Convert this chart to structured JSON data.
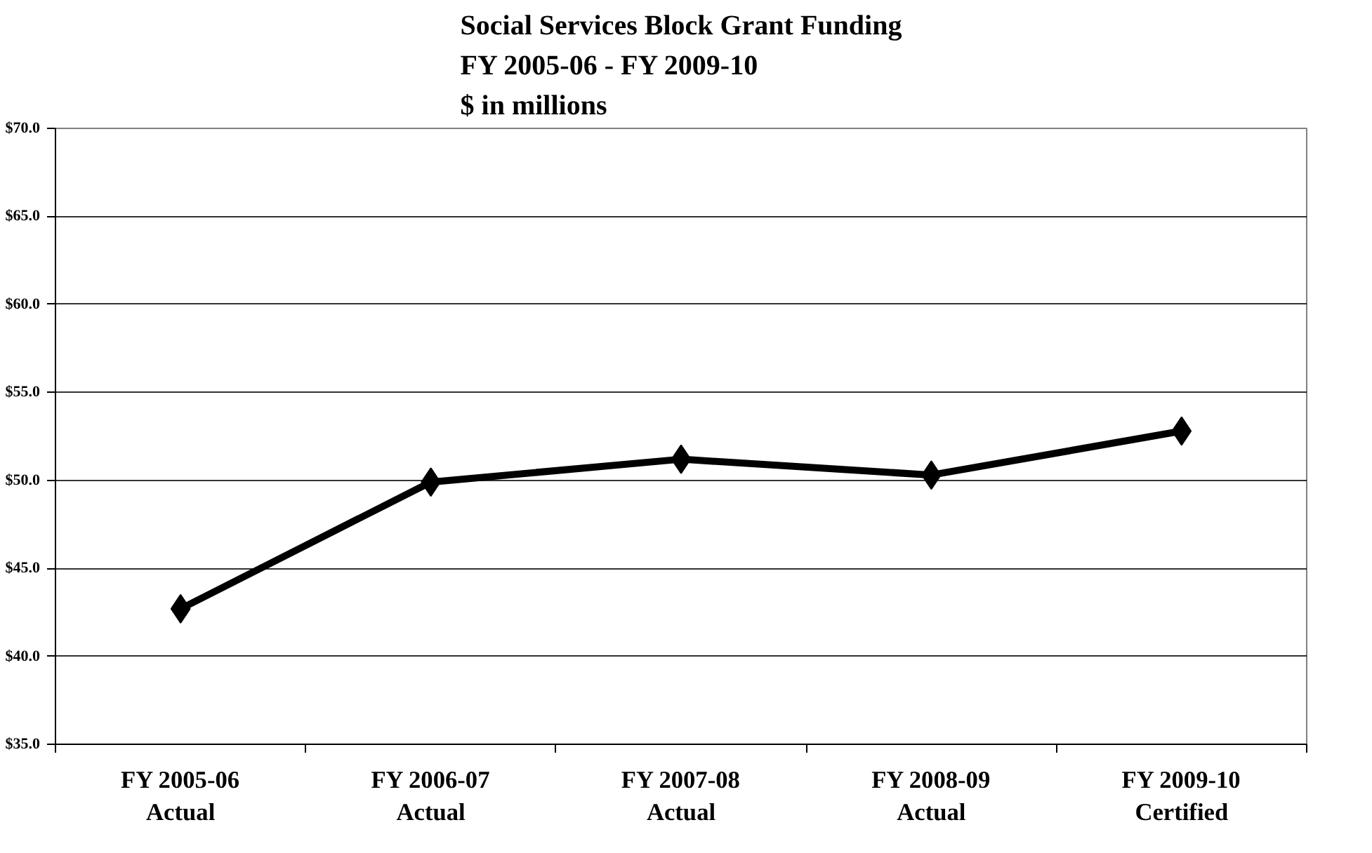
{
  "chart_data": {
    "type": "line",
    "title": "Social Services Block Grant Funding\nFY 2005-06 - FY 2009-10\n$ in millions",
    "categories": [
      "FY 2005-06\nActual",
      "FY 2006-07\nActual",
      "FY 2007-08\nActual",
      "FY 2008-09\nActual",
      "FY 2009-10\nCertified"
    ],
    "series": [
      {
        "color": "#000000",
        "values": [
          42.7,
          49.9,
          51.2,
          50.3,
          52.8
        ]
      }
    ],
    "ylim": [
      35,
      70
    ],
    "yticks": [
      {
        "value": 35,
        "label": "$35.0"
      },
      {
        "value": 40,
        "label": "$40.0"
      },
      {
        "value": 45,
        "label": "$45.0"
      },
      {
        "value": 50,
        "label": "$50.0"
      },
      {
        "value": 55,
        "label": "$55.0"
      },
      {
        "value": 60,
        "label": "$60.0"
      },
      {
        "value": 65,
        "label": "$65.0"
      },
      {
        "value": 70,
        "label": "$70.0"
      }
    ],
    "grid": "y",
    "marker": "diamond",
    "line_style": "solid"
  }
}
